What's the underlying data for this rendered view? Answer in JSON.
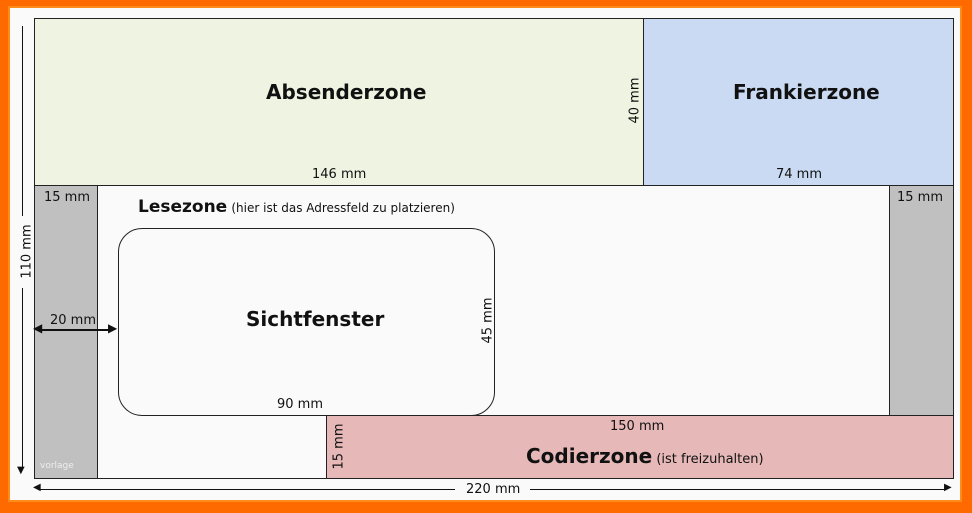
{
  "zones": {
    "absender": {
      "label": "Absenderzone",
      "width": "146 mm",
      "height": "40 mm",
      "color": "#eef3e2"
    },
    "frankier": {
      "label": "Frankierzone",
      "width": "74 mm",
      "color": "#c9daf2"
    },
    "lese": {
      "label": "Lesezone",
      "note": "(hier ist das Adressfeld zu platzieren)",
      "color": "#fafafa"
    },
    "sichtfenster": {
      "label": "Sichtfenster",
      "width": "90 mm",
      "height": "45 mm",
      "offset": "20 mm"
    },
    "left_margin": {
      "width": "15 mm",
      "color": "#c0c0c0",
      "watermark": "vorlage"
    },
    "right_margin": {
      "width": "15 mm",
      "color": "#c0c0c0"
    },
    "codier": {
      "label": "Codierzone",
      "note": "(ist freizuhalten)",
      "width": "150 mm",
      "height": "15 mm",
      "color": "#e6b8b8"
    }
  },
  "envelope": {
    "width": "220 mm",
    "height": "110 mm"
  },
  "frame_color": "#ff6a00"
}
